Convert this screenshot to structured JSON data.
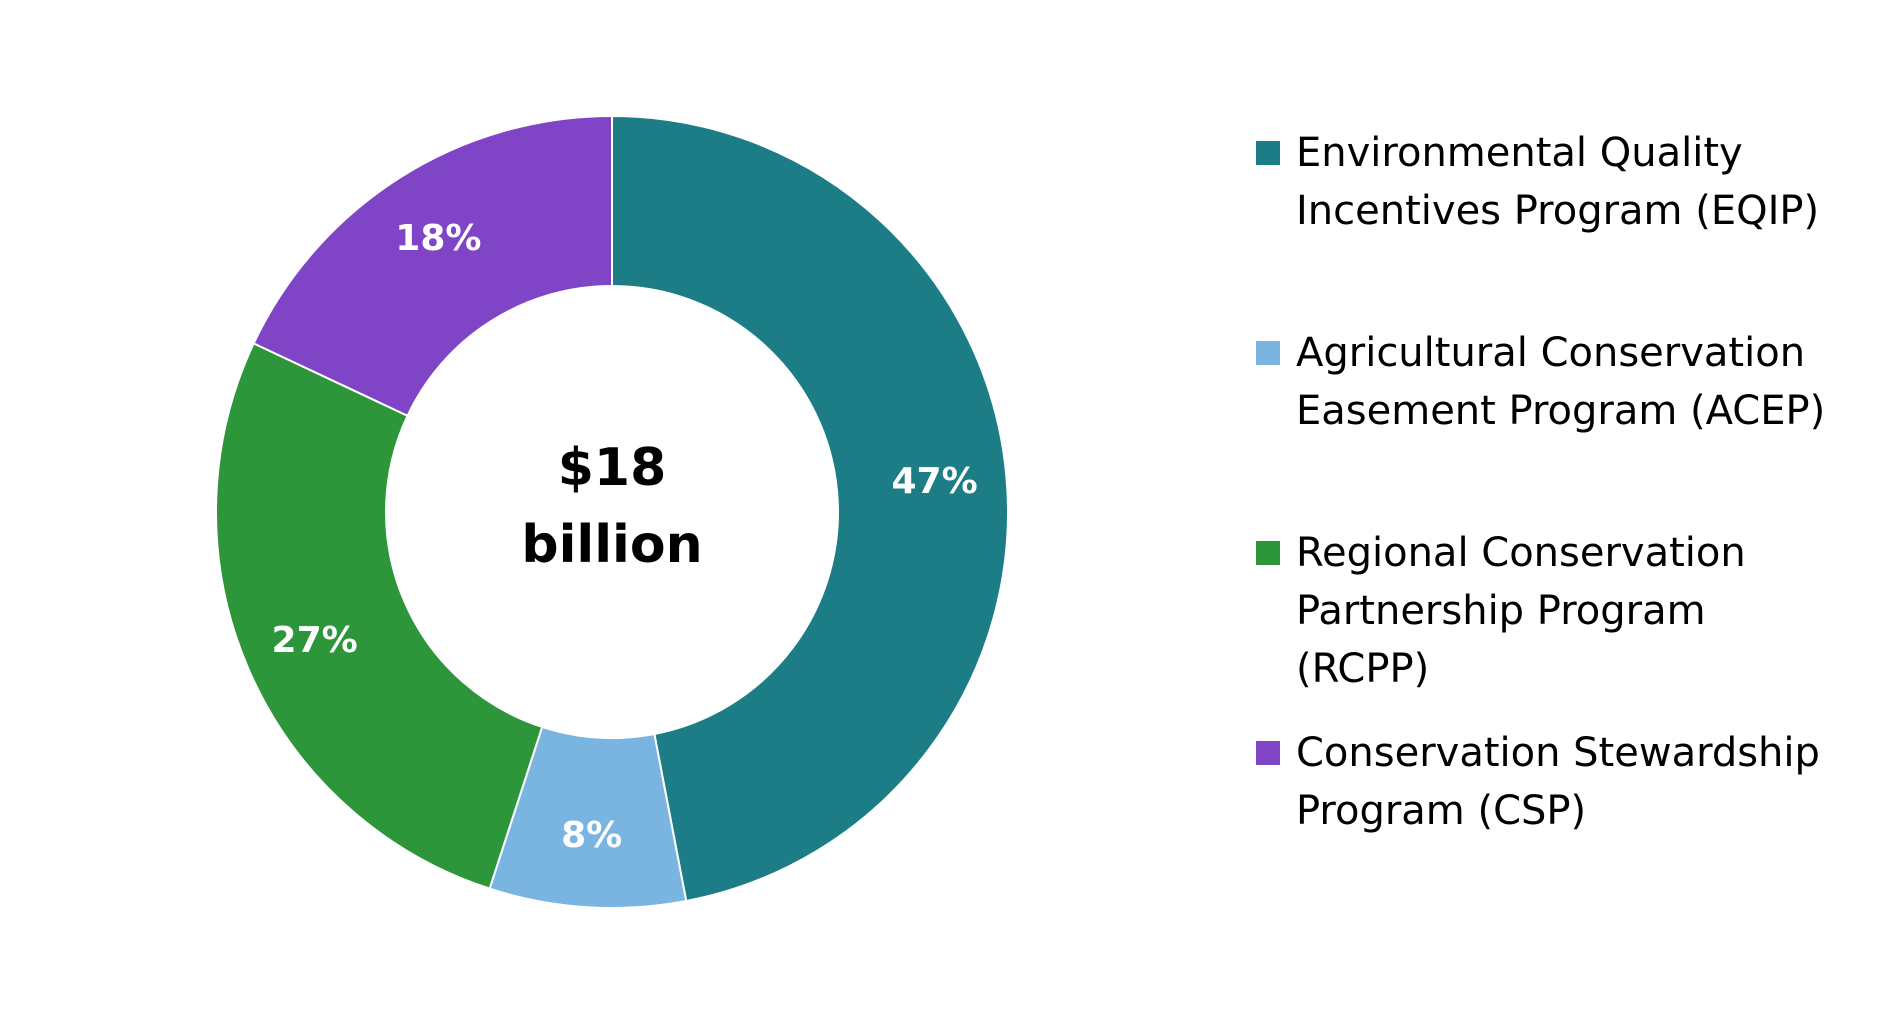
{
  "chart_data": {
    "type": "pie",
    "hole": true,
    "center_label": [
      "$18",
      "billion"
    ],
    "slices": [
      {
        "name": "Environmental Quality Incentives Program (EQIP)",
        "name_lines": [
          "Environmental Quality",
          "Incentives Program (EQIP)"
        ],
        "value": 47,
        "label": "47%",
        "color": "#1D7D87"
      },
      {
        "name": "Agricultural Conservation Easement Program (ACEP)",
        "name_lines": [
          "Agricultural Conservation",
          "Easement Program (ACEP)"
        ],
        "value": 8,
        "label": "8%",
        "color": "#7AB5E2"
      },
      {
        "name": "Regional Conservation Partnership Program (RCPP)",
        "name_lines": [
          "Regional Conservation",
          "Partnership Program",
          "(RCPP)"
        ],
        "value": 27,
        "label": "27%",
        "color": "#2E963A"
      },
      {
        "name": "Conservation Stewardship Program (CSP)",
        "name_lines": [
          "Conservation Stewardship",
          "Program (CSP)"
        ],
        "value": 18,
        "label": "18%",
        "color": "#7F45C6"
      }
    ],
    "legend_position": "right"
  }
}
